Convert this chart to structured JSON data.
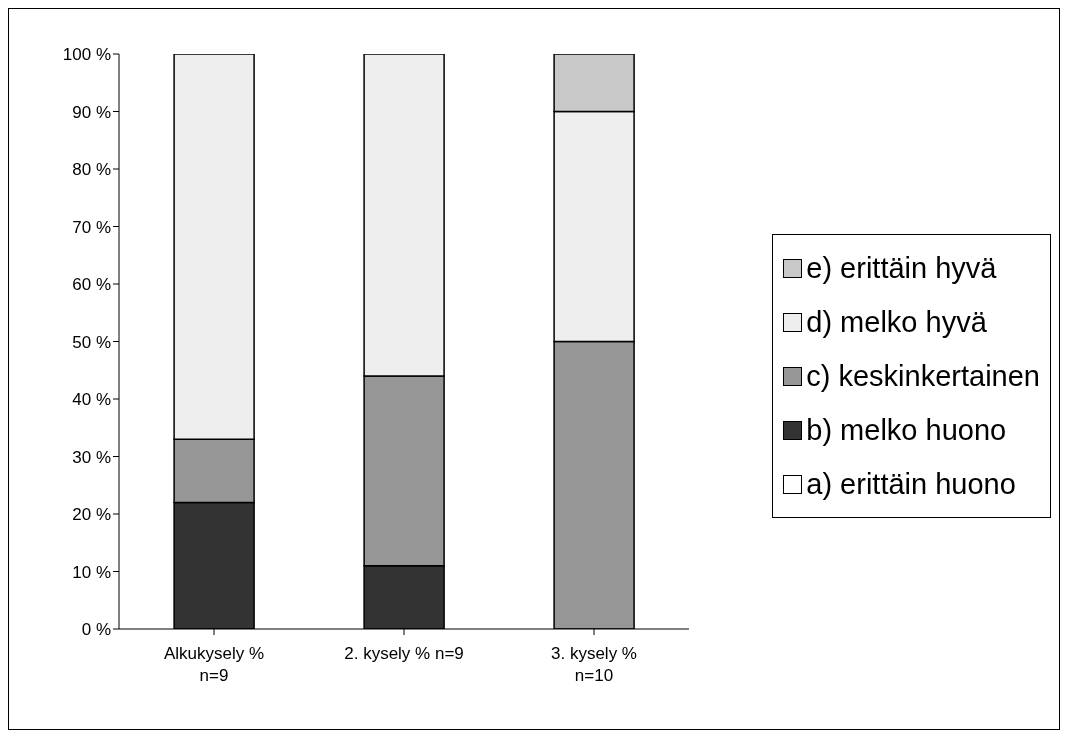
{
  "chart_data": {
    "type": "bar",
    "stacked": true,
    "categories": [
      "Alkukysely %\nn=9",
      "2. kysely % n=9",
      "3. kysely %\nn=10"
    ],
    "series": [
      {
        "name": "a) erittäin huono",
        "color": "#ffffff",
        "values": [
          0,
          0,
          0
        ]
      },
      {
        "name": "b) melko huono",
        "color": "#333333",
        "values": [
          22,
          11,
          0
        ]
      },
      {
        "name": "c) keskinkertainen",
        "color": "#969696",
        "values": [
          11,
          33,
          50
        ]
      },
      {
        "name": "d) melko hyvä",
        "color": "#eeeeee",
        "values": [
          67,
          56,
          40
        ]
      },
      {
        "name": "e) erittäin hyvä",
        "color": "#c8c8c8",
        "values": [
          0,
          0,
          10
        ]
      }
    ],
    "ylim": [
      0,
      100
    ],
    "yticks": [
      {
        "value": 0,
        "label": "0 %"
      },
      {
        "value": 10,
        "label": "10 %"
      },
      {
        "value": 20,
        "label": "20 %"
      },
      {
        "value": 30,
        "label": "30 %"
      },
      {
        "value": 40,
        "label": "40 %"
      },
      {
        "value": 50,
        "label": "50 %"
      },
      {
        "value": 60,
        "label": "60 %"
      },
      {
        "value": 70,
        "label": "70 %"
      },
      {
        "value": 80,
        "label": "80 %"
      },
      {
        "value": 90,
        "label": "90 %"
      },
      {
        "value": 100,
        "label": "100 %"
      }
    ],
    "legend": "right"
  }
}
